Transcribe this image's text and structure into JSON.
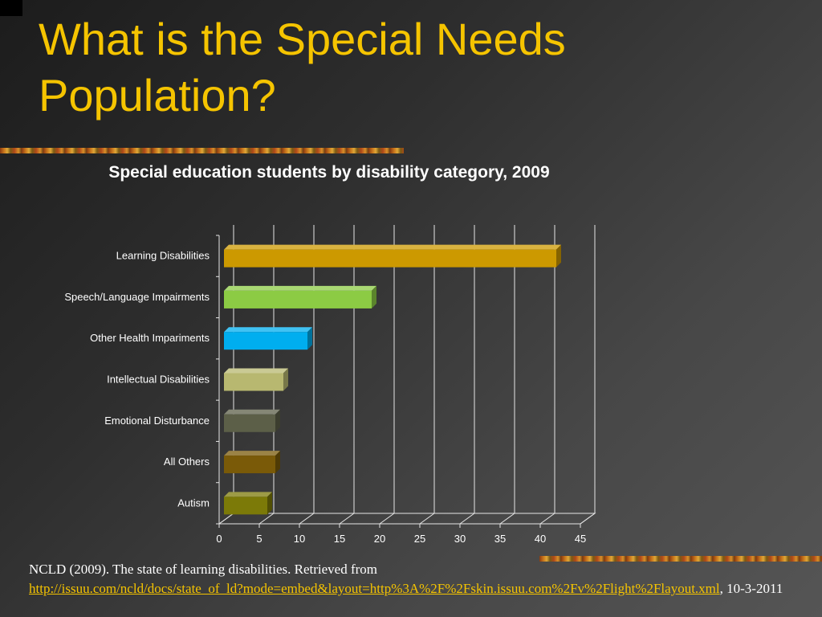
{
  "slide": {
    "title": "What is the Special Needs Population?"
  },
  "chart_data": {
    "type": "bar",
    "orientation": "horizontal",
    "title": "Special education students by disability category, 2009",
    "categories": [
      "Learning Disabilities",
      "Speech/Language Impairments",
      "Other Health Impariments",
      "Intellectual Disabilities",
      "Emotional Disturbance",
      "All Others",
      "Autism"
    ],
    "values": [
      42,
      19,
      11,
      8,
      7,
      7,
      6
    ],
    "bar_colors": [
      "#cc9900",
      "#8ccb44",
      "#00aeef",
      "#b8b870",
      "#5c5f48",
      "#7a5a08",
      "#7c7a08"
    ],
    "x_ticks": [
      0,
      5,
      10,
      15,
      20,
      25,
      30,
      35,
      40,
      45
    ],
    "xlim": [
      0,
      45
    ],
    "grid": true,
    "xlabel": "",
    "ylabel": ""
  },
  "citation": {
    "prefix": "NCLD (2009).  The state of learning disabilities.  Retrieved from",
    "link_text": "http://issuu.com/ncld/docs/state_of_ld?mode=embed&layout=http%3A%2F%2Fskin.issuu.com%2Fv%2Flight%2Flayout.xml",
    "suffix": ", 10-3-2011"
  },
  "colors": {
    "title": "#f5c400",
    "link": "#f5c400",
    "text": "#ffffff"
  }
}
